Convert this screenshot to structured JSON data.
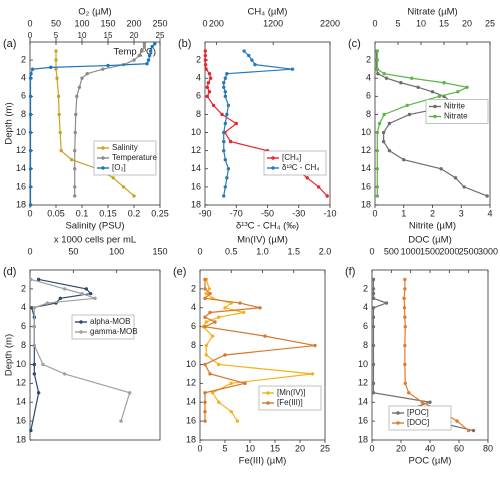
{
  "chart_data": [
    {
      "type": "line",
      "panel_label": "(a)",
      "ylabel": "Depth (m)",
      "ylim": [
        0,
        18
      ],
      "yticks": [
        2,
        4,
        6,
        8,
        10,
        12,
        14,
        16,
        18
      ],
      "legend": "lower right",
      "x_top": {
        "label": "O₂ (µM)",
        "lim": [
          0,
          250
        ],
        "ticks": [
          0,
          50,
          100,
          150,
          200,
          250
        ]
      },
      "x_top2": {
        "label": "Temp (ºC)",
        "lim": [
          0,
          25
        ],
        "ticks": [
          0,
          5,
          10,
          15,
          20,
          25
        ]
      },
      "x_bottom": {
        "label": "Salinity (PSU)",
        "lim": [
          0,
          0.25
        ],
        "ticks": [
          0,
          0.05,
          0.1,
          0.15,
          0.2,
          0.25
        ]
      },
      "series": [
        {
          "name": "Salinity",
          "color": "#c9a227",
          "axis": "x_bottom",
          "depth": [
            1,
            2,
            3,
            4,
            6,
            8,
            10,
            12,
            13,
            14,
            15,
            16,
            17
          ],
          "values": [
            0.05,
            0.05,
            0.05,
            0.052,
            0.055,
            0.056,
            0.058,
            0.06,
            0.08,
            0.13,
            0.16,
            0.18,
            0.2
          ]
        },
        {
          "name": "Temperature",
          "color": "#8c8c8c",
          "axis": "x_top2",
          "depth": [
            0.2,
            0.5,
            1,
            1.5,
            2,
            2.5,
            3,
            3.5,
            4,
            5,
            6,
            8,
            10,
            12,
            14,
            16,
            17
          ],
          "values": [
            22,
            22,
            21.5,
            21,
            20,
            18,
            14,
            11,
            10,
            9.5,
            9,
            8.8,
            8.7,
            8.6,
            8.6,
            8.6,
            8.6
          ]
        },
        {
          "name": "[O₂]",
          "color": "#1b75bb",
          "axis": "x_top",
          "depth": [
            0.2,
            0.5,
            1,
            1.5,
            2,
            2.4,
            2.6,
            2.8,
            3,
            3.5,
            4,
            6,
            8,
            10,
            12,
            14,
            16,
            18
          ],
          "values": [
            240,
            235,
            232,
            230,
            228,
            225,
            150,
            40,
            5,
            2,
            1,
            1,
            1,
            1,
            1,
            1,
            1,
            1
          ]
        }
      ]
    },
    {
      "type": "line",
      "panel_label": "(b)",
      "ylim": [
        0,
        18
      ],
      "yticks": [
        2,
        4,
        6,
        8,
        10,
        12,
        14,
        16,
        18
      ],
      "legend": "lower right",
      "x_top": {
        "label": "CH₄ (µM)",
        "lim": [
          0,
          2200
        ],
        "ticks": [
          0,
          200,
          1200,
          2200
        ]
      },
      "x_bottom": {
        "label": "δ¹³C - CH₄ (‰)",
        "lim": [
          -90,
          -10
        ],
        "ticks": [
          -90,
          -70,
          -50,
          -30,
          -10
        ]
      },
      "series": [
        {
          "name": "[CH₄]",
          "color": "#e8262b",
          "axis": "x_top",
          "depth": [
            1,
            1.5,
            2,
            2.5,
            3,
            3.5,
            4,
            4.5,
            5,
            5.5,
            6,
            7,
            8,
            9,
            10,
            11,
            12,
            13,
            14,
            15,
            16,
            17
          ],
          "values": [
            5,
            5,
            5,
            10,
            20,
            80,
            100,
            60,
            40,
            80,
            40,
            150,
            300,
            550,
            350,
            450,
            1100,
            1400,
            1600,
            1800,
            2000,
            2150
          ]
        },
        {
          "name": "δ¹³C - CH₄",
          "color": "#2a7ab8",
          "axis": "x_bottom",
          "depth": [
            1,
            1.5,
            2,
            2.5,
            3,
            3.5,
            4,
            4.5,
            5,
            5.5,
            6,
            7,
            8,
            9,
            10,
            11,
            12,
            13,
            14,
            15,
            16,
            17
          ],
          "values": [
            -65,
            -62,
            -60,
            -58,
            -34,
            -76,
            -77,
            -78,
            -78,
            -77,
            -77,
            -75,
            -76,
            -77,
            -78,
            -78,
            -78,
            -77,
            -75,
            -76,
            -77,
            -78
          ]
        }
      ]
    },
    {
      "type": "line",
      "panel_label": "(c)",
      "ylim": [
        0,
        18
      ],
      "yticks": [
        2,
        4,
        6,
        8,
        10,
        12,
        14,
        16,
        18
      ],
      "legend": "center right",
      "x_top": {
        "label": "Nitrate (µM)",
        "lim": [
          0,
          25
        ],
        "ticks": [
          0,
          5,
          10,
          15,
          20,
          25
        ]
      },
      "x_bottom": {
        "label": "Nitrite (µM)",
        "lim": [
          0,
          4
        ],
        "ticks": [
          0,
          1,
          2,
          3,
          4
        ]
      },
      "series": [
        {
          "name": "Nitrite",
          "color": "#6d6d6d",
          "axis": "x_bottom",
          "depth": [
            1,
            2,
            3,
            3.5,
            4,
            4.5,
            5,
            5.5,
            6,
            7,
            8,
            9,
            10,
            11,
            12,
            13,
            14,
            15,
            16,
            17
          ],
          "values": [
            0.05,
            0.05,
            0.05,
            0.1,
            0.4,
            0.9,
            1.5,
            2,
            2.4,
            2.8,
            1.2,
            0.5,
            0.3,
            0.3,
            0.5,
            1,
            2.3,
            2.8,
            3.1,
            3.9
          ]
        },
        {
          "name": "Nitrate",
          "color": "#5cb547",
          "axis": "x_top",
          "depth": [
            1,
            2,
            3,
            3.5,
            4,
            4.5,
            5,
            5.5,
            6,
            7,
            8,
            9,
            10,
            12,
            14,
            16,
            17
          ],
          "values": [
            0.5,
            0.5,
            0.5,
            2,
            8,
            15,
            20,
            18,
            14,
            7,
            2,
            1,
            0.5,
            0.5,
            0.5,
            0.5,
            0.5
          ]
        }
      ]
    },
    {
      "type": "line",
      "panel_label": "(d)",
      "ylabel": "Depth (m)",
      "ylim": [
        0,
        18
      ],
      "yticks": [
        2,
        4,
        6,
        8,
        10,
        12,
        14,
        16,
        18
      ],
      "legend": "center",
      "x_top": {
        "label": "x 1000 cells per mL",
        "lim": [
          0,
          150
        ],
        "ticks": [
          0,
          50,
          100,
          150
        ]
      },
      "series": [
        {
          "name": "alpha-MOB",
          "color": "#2d4a6b",
          "axis": "x_top",
          "depth": [
            1,
            2,
            2.5,
            3,
            3.5,
            4,
            5,
            6,
            8,
            10,
            11,
            13,
            17
          ],
          "values": [
            10,
            65,
            70,
            35,
            30,
            2,
            5,
            5,
            5,
            5,
            5,
            10,
            1
          ]
        },
        {
          "name": "gamma-MOB",
          "color": "#a0a0a0",
          "axis": "x_top",
          "depth": [
            1,
            2,
            2.5,
            3,
            3.5,
            4,
            6,
            8,
            10,
            11,
            13,
            16
          ],
          "values": [
            1,
            40,
            60,
            75,
            20,
            5,
            5,
            5,
            15,
            40,
            115,
            105
          ]
        }
      ]
    },
    {
      "type": "line",
      "panel_label": "(e)",
      "ylim": [
        0,
        18
      ],
      "yticks": [
        2,
        4,
        6,
        8,
        10,
        12,
        14,
        16,
        18
      ],
      "legend": "lower right",
      "x_top": {
        "label": "Mn(IV) (µM)",
        "lim": [
          0,
          2
        ],
        "ticks": [
          0,
          0.5,
          {
            "value": 1,
            "label": "1.0"
          },
          1.5,
          {
            "value": 2,
            "label": "2.0"
          }
        ]
      },
      "x_bottom": {
        "label": "Fe(III) (µM)",
        "lim": [
          0,
          25
        ],
        "ticks": [
          0,
          5,
          10,
          15,
          20,
          25
        ]
      },
      "series": [
        {
          "name": "[Mn(IV)]",
          "color": "#f5b21b",
          "axis": "x_top",
          "depth": [
            1,
            2,
            2.5,
            3,
            3.5,
            4,
            4.5,
            5,
            5.5,
            6,
            7,
            8,
            9,
            10,
            11,
            12,
            13,
            14,
            15,
            16
          ],
          "values": [
            0.1,
            0.15,
            0.1,
            0.2,
            0.5,
            0.4,
            0.7,
            0.3,
            0.1,
            0.05,
            0.2,
            0.1,
            0.1,
            0.3,
            1.8,
            0.5,
            0.2,
            0.3,
            0.5,
            0.6
          ]
        },
        {
          "name": "[Fe(III)]",
          "color": "#d9772b",
          "axis": "x_bottom",
          "depth": [
            1,
            2,
            2.5,
            3,
            3.5,
            4,
            4.5,
            5,
            5.5,
            6,
            7,
            8,
            9,
            10,
            11,
            12,
            13,
            14,
            15,
            16
          ],
          "values": [
            1,
            1,
            2,
            1,
            8,
            12,
            2,
            1,
            3,
            1,
            13,
            23,
            5,
            1,
            2,
            9,
            1,
            1,
            1,
            1
          ]
        }
      ]
    },
    {
      "type": "line",
      "panel_label": "(f)",
      "ylim": [
        0,
        18
      ],
      "yticks": [
        2,
        4,
        6,
        8,
        10,
        12,
        14,
        16,
        18
      ],
      "legend": "lower center",
      "x_top": {
        "label": "DOC (µM)",
        "lim": [
          0,
          3000
        ],
        "ticks": [
          0,
          500,
          1000,
          1500,
          2000,
          2500,
          3000
        ]
      },
      "x_bottom": {
        "label": "POC (µM)",
        "lim": [
          0,
          80
        ],
        "ticks": [
          0,
          20,
          40,
          60,
          80
        ]
      },
      "series": [
        {
          "name": "[POC]",
          "color": "#707070",
          "axis": "x_bottom",
          "depth": [
            1,
            2,
            2.5,
            3,
            3.5,
            4,
            5,
            6,
            8,
            10,
            12,
            13,
            14,
            15,
            16,
            17
          ],
          "values": [
            1,
            1,
            1,
            1,
            10,
            1,
            1,
            1,
            1,
            1,
            1,
            1,
            40,
            20,
            42,
            70
          ]
        },
        {
          "name": "[DOC]",
          "color": "#e07b2c",
          "axis": "x_top",
          "depth": [
            1,
            2,
            3,
            4,
            5,
            6,
            8,
            10,
            12,
            13,
            14,
            15,
            16,
            17
          ],
          "values": [
            850,
            850,
            830,
            840,
            850,
            860,
            850,
            850,
            860,
            950,
            1300,
            1800,
            2200,
            2500
          ]
        }
      ]
    }
  ]
}
